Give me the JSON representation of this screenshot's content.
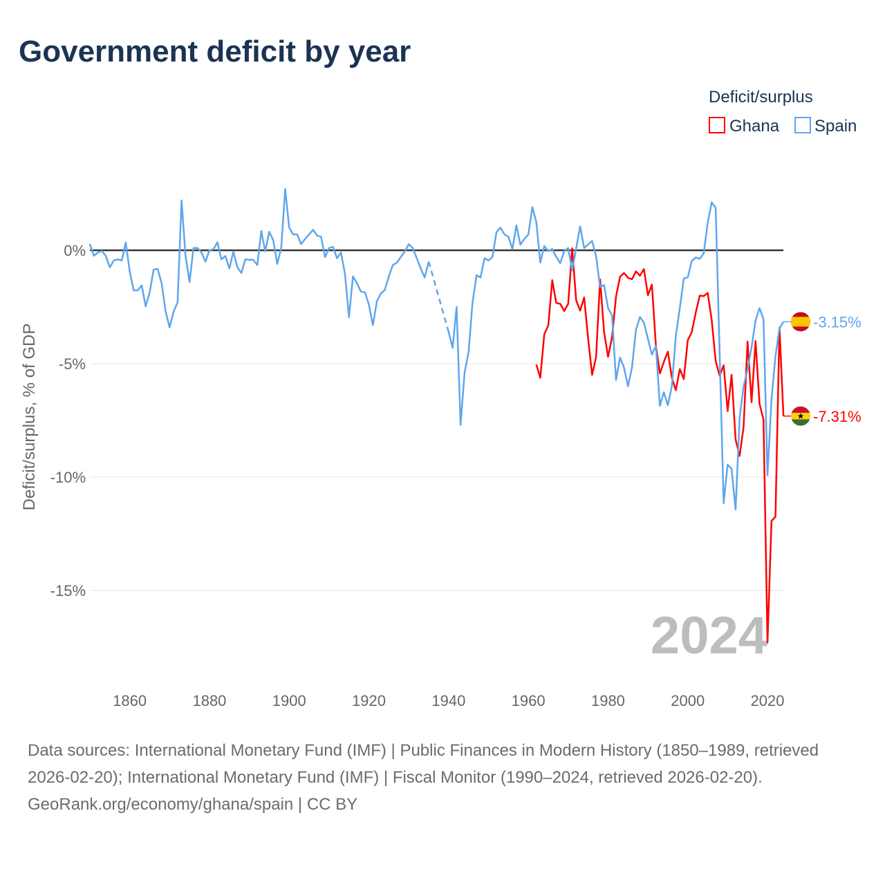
{
  "title": "Government deficit by year",
  "footer": {
    "sources": "Data sources: International Monetary Fund (IMF) | Public Finances in Modern History (1850–1989, retrieved 2026-02-20); International Monetary Fund (IMF) | Fiscal Monitor (1990–2024, retrieved 2026-02-20).",
    "credit": "GeoRank.org/economy/ghana/spain | CC BY"
  },
  "chart_data": {
    "type": "line",
    "title": "Government deficit by year",
    "xlabel": "",
    "ylabel": "Deficit/surplus, % of GDP",
    "xlim": [
      1850,
      2024
    ],
    "ylim": [
      -17.5,
      2.8
    ],
    "x_ticks": [
      "1860",
      "1880",
      "1900",
      "1920",
      "1940",
      "1960",
      "1980",
      "2000",
      "2020"
    ],
    "y_ticks": [
      {
        "value": 0,
        "label": "0%"
      },
      {
        "value": -5,
        "label": "-5%"
      },
      {
        "value": -10,
        "label": "-10%"
      },
      {
        "value": -15,
        "label": "-15%"
      }
    ],
    "year_watermark": "2024",
    "legend": {
      "title": "Deficit/surplus",
      "placement": "top-right"
    },
    "series": [
      {
        "name": "Ghana",
        "color": "#ff0000",
        "start_year": 1962,
        "end_label": "-7.31%",
        "flag": "ghana-flag",
        "values": [
          -5.04,
          -5.62,
          -3.7,
          -3.32,
          -1.32,
          -2.32,
          -2.36,
          -2.68,
          -2.36,
          0.09,
          -2.21,
          -2.66,
          -2.08,
          -3.9,
          -5.49,
          -4.7,
          -1.28,
          -3.6,
          -4.7,
          -3.83,
          -2.04,
          -1.17,
          -1.0,
          -1.21,
          -1.28,
          -0.93,
          -1.12,
          -0.83,
          -1.98,
          -1.51,
          -4.21,
          -5.43,
          -4.92,
          -4.47,
          -5.62,
          -6.17,
          -5.24,
          -5.68,
          -3.96,
          -3.61,
          -2.75,
          -2.0,
          -2.02,
          -1.88,
          -3.07,
          -4.89,
          -5.53,
          -5.07,
          -7.09,
          -5.49,
          -8.34,
          -9.07,
          -7.79,
          -4.02,
          -6.7,
          -4.0,
          -6.77,
          -7.47,
          -17.3,
          -11.94,
          -11.75,
          -3.41,
          -7.31
        ]
      },
      {
        "name": "Spain",
        "color": "#5ea6ec",
        "start_year": 1850,
        "end_label": "-3.15%",
        "flag": "spain-flag",
        "values": [
          0.27,
          -0.24,
          -0.1,
          -0.03,
          -0.25,
          -0.75,
          -0.45,
          -0.4,
          -0.45,
          0.35,
          -0.95,
          -1.77,
          -1.77,
          -1.55,
          -2.47,
          -1.85,
          -0.85,
          -0.82,
          -1.45,
          -2.7,
          -3.4,
          -2.7,
          -2.3,
          2.2,
          -0.25,
          -1.4,
          0.1,
          0.1,
          -0.1,
          -0.5,
          0,
          0.05,
          0.35,
          -0.4,
          -0.25,
          -0.8,
          -0.05,
          -0.75,
          -1.0,
          -0.4,
          -0.42,
          -0.42,
          -0.65,
          0.85,
          -0.05,
          0.82,
          0.45,
          -0.6,
          0.1,
          2.7,
          1.0,
          0.7,
          0.7,
          0.27,
          0.5,
          0.7,
          0.9,
          0.65,
          0.6,
          -0.3,
          0.1,
          0.15,
          -0.35,
          -0.1,
          -1.05,
          -2.95,
          -1.15,
          -1.45,
          -1.82,
          -1.85,
          -2.4,
          -3.3,
          -2.25,
          -1.9,
          -1.75,
          -1.15,
          -0.65,
          -0.55,
          -0.3,
          -0.05,
          0.27,
          0.1,
          -0.35,
          -0.8,
          -1.2,
          -0.5,
          null,
          null,
          null,
          null,
          -3.6,
          -4.3,
          -2.5,
          -7.7,
          -5.4,
          -4.5,
          -2.3,
          -1.1,
          -1.2,
          -0.35,
          -0.45,
          -0.3,
          0.8,
          1.0,
          0.7,
          0.6,
          0.05,
          1.1,
          0.25,
          0.5,
          0.7,
          1.9,
          1.25,
          -0.54,
          0.19,
          -0.04,
          0.06,
          -0.29,
          -0.57,
          -0.04,
          0.1,
          -0.89,
          0.09,
          1.05,
          0.1,
          0.26,
          0.41,
          -0.26,
          -1.62,
          -1.53,
          -2.55,
          -2.87,
          -5.72,
          -4.73,
          -5.17,
          -6.0,
          -5.17,
          -3.51,
          -2.94,
          -3.19,
          -3.9,
          -4.6,
          -4.21,
          -6.86,
          -6.26,
          -6.83,
          -6.0,
          -3.77,
          -2.55,
          -1.24,
          -1.19,
          -0.47,
          -0.32,
          -0.38,
          -0.13,
          1.21,
          2.11,
          1.88,
          -4.6,
          -11.15,
          -9.45,
          -9.64,
          -11.43,
          -7.41,
          -6.0,
          -5.24,
          -4.28,
          -3.1,
          -2.55,
          -3.04,
          -9.92,
          -6.58,
          -4.66,
          -3.45,
          -3.15
        ]
      }
    ]
  }
}
